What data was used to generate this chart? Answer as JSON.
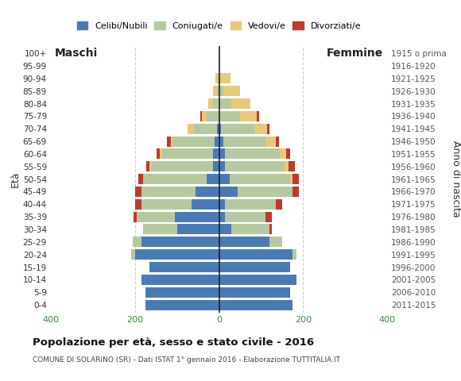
{
  "age_groups": [
    "0-4",
    "5-9",
    "10-14",
    "15-19",
    "20-24",
    "25-29",
    "30-34",
    "35-39",
    "40-44",
    "45-49",
    "50-54",
    "55-59",
    "60-64",
    "65-69",
    "70-74",
    "75-79",
    "80-84",
    "85-89",
    "90-94",
    "95-99",
    "100+"
  ],
  "birth_years": [
    "2011-2015",
    "2006-2010",
    "2001-2005",
    "1996-2000",
    "1991-1995",
    "1986-1990",
    "1981-1985",
    "1976-1980",
    "1971-1975",
    "1966-1970",
    "1961-1965",
    "1956-1960",
    "1951-1955",
    "1946-1950",
    "1941-1945",
    "1936-1940",
    "1931-1935",
    "1926-1930",
    "1921-1925",
    "1916-1920",
    "1915 o prima"
  ],
  "males": {
    "celibe": [
      175,
      175,
      185,
      165,
      200,
      185,
      100,
      105,
      65,
      55,
      30,
      15,
      15,
      10,
      5,
      0,
      0,
      0,
      0,
      0,
      0
    ],
    "coniugato": [
      0,
      0,
      0,
      0,
      8,
      20,
      80,
      90,
      120,
      130,
      150,
      145,
      120,
      100,
      55,
      30,
      15,
      5,
      3,
      0,
      0
    ],
    "vedovo": [
      0,
      0,
      0,
      0,
      0,
      0,
      0,
      0,
      0,
      0,
      0,
      5,
      5,
      5,
      15,
      10,
      10,
      10,
      5,
      0,
      0
    ],
    "divorziato": [
      0,
      0,
      0,
      0,
      0,
      0,
      0,
      8,
      14,
      15,
      12,
      8,
      8,
      8,
      0,
      5,
      0,
      0,
      0,
      0,
      0
    ]
  },
  "females": {
    "nubile": [
      175,
      170,
      185,
      170,
      175,
      120,
      30,
      15,
      15,
      45,
      25,
      15,
      15,
      10,
      5,
      0,
      0,
      0,
      0,
      0,
      0
    ],
    "coniugata": [
      0,
      0,
      0,
      0,
      10,
      30,
      90,
      95,
      120,
      130,
      145,
      140,
      130,
      100,
      80,
      50,
      30,
      10,
      3,
      0,
      0
    ],
    "vedova": [
      0,
      0,
      0,
      0,
      0,
      0,
      0,
      0,
      0,
      0,
      5,
      10,
      15,
      25,
      30,
      40,
      45,
      40,
      25,
      3,
      0
    ],
    "divorziata": [
      0,
      0,
      0,
      0,
      0,
      0,
      5,
      15,
      15,
      15,
      15,
      15,
      10,
      8,
      5,
      5,
      0,
      0,
      0,
      0,
      0
    ]
  },
  "color_celibe": "#4a7ab5",
  "color_coniugato": "#b5c9a0",
  "color_vedovo": "#e8c97a",
  "color_divorziato": "#c0392b",
  "xlim": 400,
  "title": "Popolazione per età, sesso e stato civile - 2016",
  "subtitle": "COMUNE DI SOLARINO (SR) - Dati ISTAT 1° gennaio 2016 - Elaborazione TUTTITALIA.IT",
  "ylabel_left": "Età",
  "ylabel_right": "Anno di nascita",
  "label_maschi": "Maschi",
  "label_femmine": "Femmine",
  "legend_labels": [
    "Celibi/Nubili",
    "Coniugati/e",
    "Vedovi/e",
    "Divorziati/e"
  ],
  "background_color": "#ffffff",
  "grid_color": "#cccccc",
  "xtick_color": "#3a8a3a"
}
